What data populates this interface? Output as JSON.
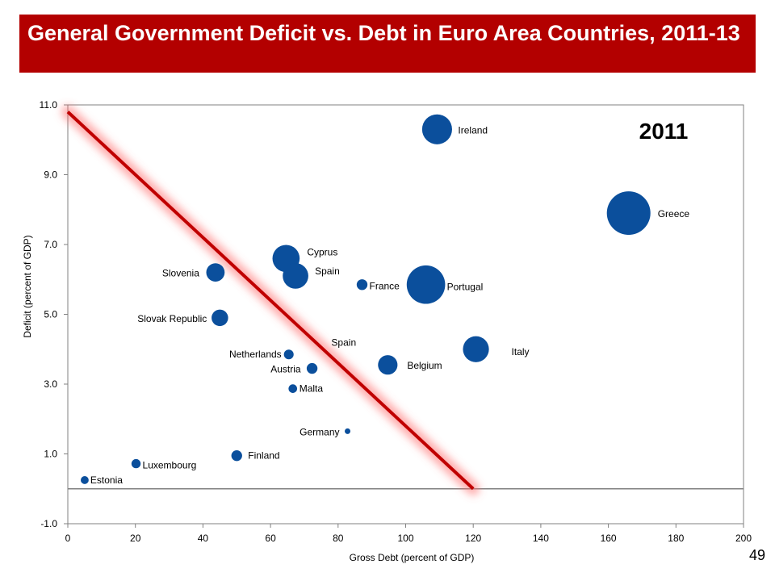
{
  "header": {
    "title": "General Government Deficit vs. Debt in Euro Area Countries, 2011-13"
  },
  "page_number": "49",
  "chart_data": {
    "type": "scatter",
    "title": "",
    "year_label": "2011",
    "xlabel": "Gross Debt  (percent of GDP)",
    "ylabel": "Deficit  (percent of GDP)",
    "xlim": [
      0,
      200
    ],
    "ylim": [
      -1,
      11
    ],
    "x_ticks": [
      0,
      20,
      40,
      60,
      80,
      100,
      120,
      140,
      160,
      180,
      200
    ],
    "x_tick_labels": [
      "0",
      "20",
      "40",
      "60",
      "80",
      "100",
      "120",
      "140",
      "160",
      "180",
      "200"
    ],
    "y_ticks": [
      -1,
      1,
      3,
      5,
      7,
      9,
      11
    ],
    "y_tick_labels": [
      "-1.0",
      "1.0",
      "3.0",
      "5.0",
      "7.0",
      "9.0",
      "11.0"
    ],
    "grid": false,
    "zero_line": 0,
    "marker_color": "#0b4f9c",
    "trend_line": {
      "x": [
        0,
        120
      ],
      "y": [
        10.8,
        0
      ],
      "color": "#c00000"
    },
    "points": [
      {
        "name": "Ireland",
        "x": 109.3,
        "y": 10.3,
        "size": 8.5
      },
      {
        "name": "Greece",
        "x": 166,
        "y": 7.9,
        "size": 18
      },
      {
        "name": "Cyprus",
        "x": 64.6,
        "y": 6.6,
        "size": 7
      },
      {
        "name": "Spain",
        "x": 67.4,
        "y": 6.1,
        "size": 6.2
      },
      {
        "name": "Slovenia",
        "x": 43.7,
        "y": 6.2,
        "size": 3.2
      },
      {
        "name": "France",
        "x": 87.1,
        "y": 5.85,
        "size": 1.1
      },
      {
        "name": "Portugal",
        "x": 106,
        "y": 5.85,
        "size": 14
      },
      {
        "name": "Slovak Republic",
        "x": 45,
        "y": 4.9,
        "size": 2.6
      },
      {
        "name": "Netherlands",
        "x": 65.4,
        "y": 3.85,
        "size": 0.9
      },
      {
        "name": "Austria",
        "x": 72.3,
        "y": 3.45,
        "size": 1.1
      },
      {
        "name": "Belgium",
        "x": 94.7,
        "y": 3.55,
        "size": 3.6
      },
      {
        "name": "Italy",
        "x": 120.8,
        "y": 4.0,
        "size": 6.4
      },
      {
        "name": "Malta",
        "x": 66.6,
        "y": 2.87,
        "size": 0.7
      },
      {
        "name": "Germany",
        "x": 82.8,
        "y": 1.65,
        "size": 0.25
      },
      {
        "name": "Finland",
        "x": 50,
        "y": 0.95,
        "size": 1.1
      },
      {
        "name": "Luxembourg",
        "x": 20.2,
        "y": 0.72,
        "size": 0.8
      },
      {
        "name": "Estonia",
        "x": 5,
        "y": 0.25,
        "size": 0.6
      }
    ],
    "floating_labels": [
      {
        "text": "Spain",
        "x": 78,
        "y": 4.1
      }
    ]
  }
}
